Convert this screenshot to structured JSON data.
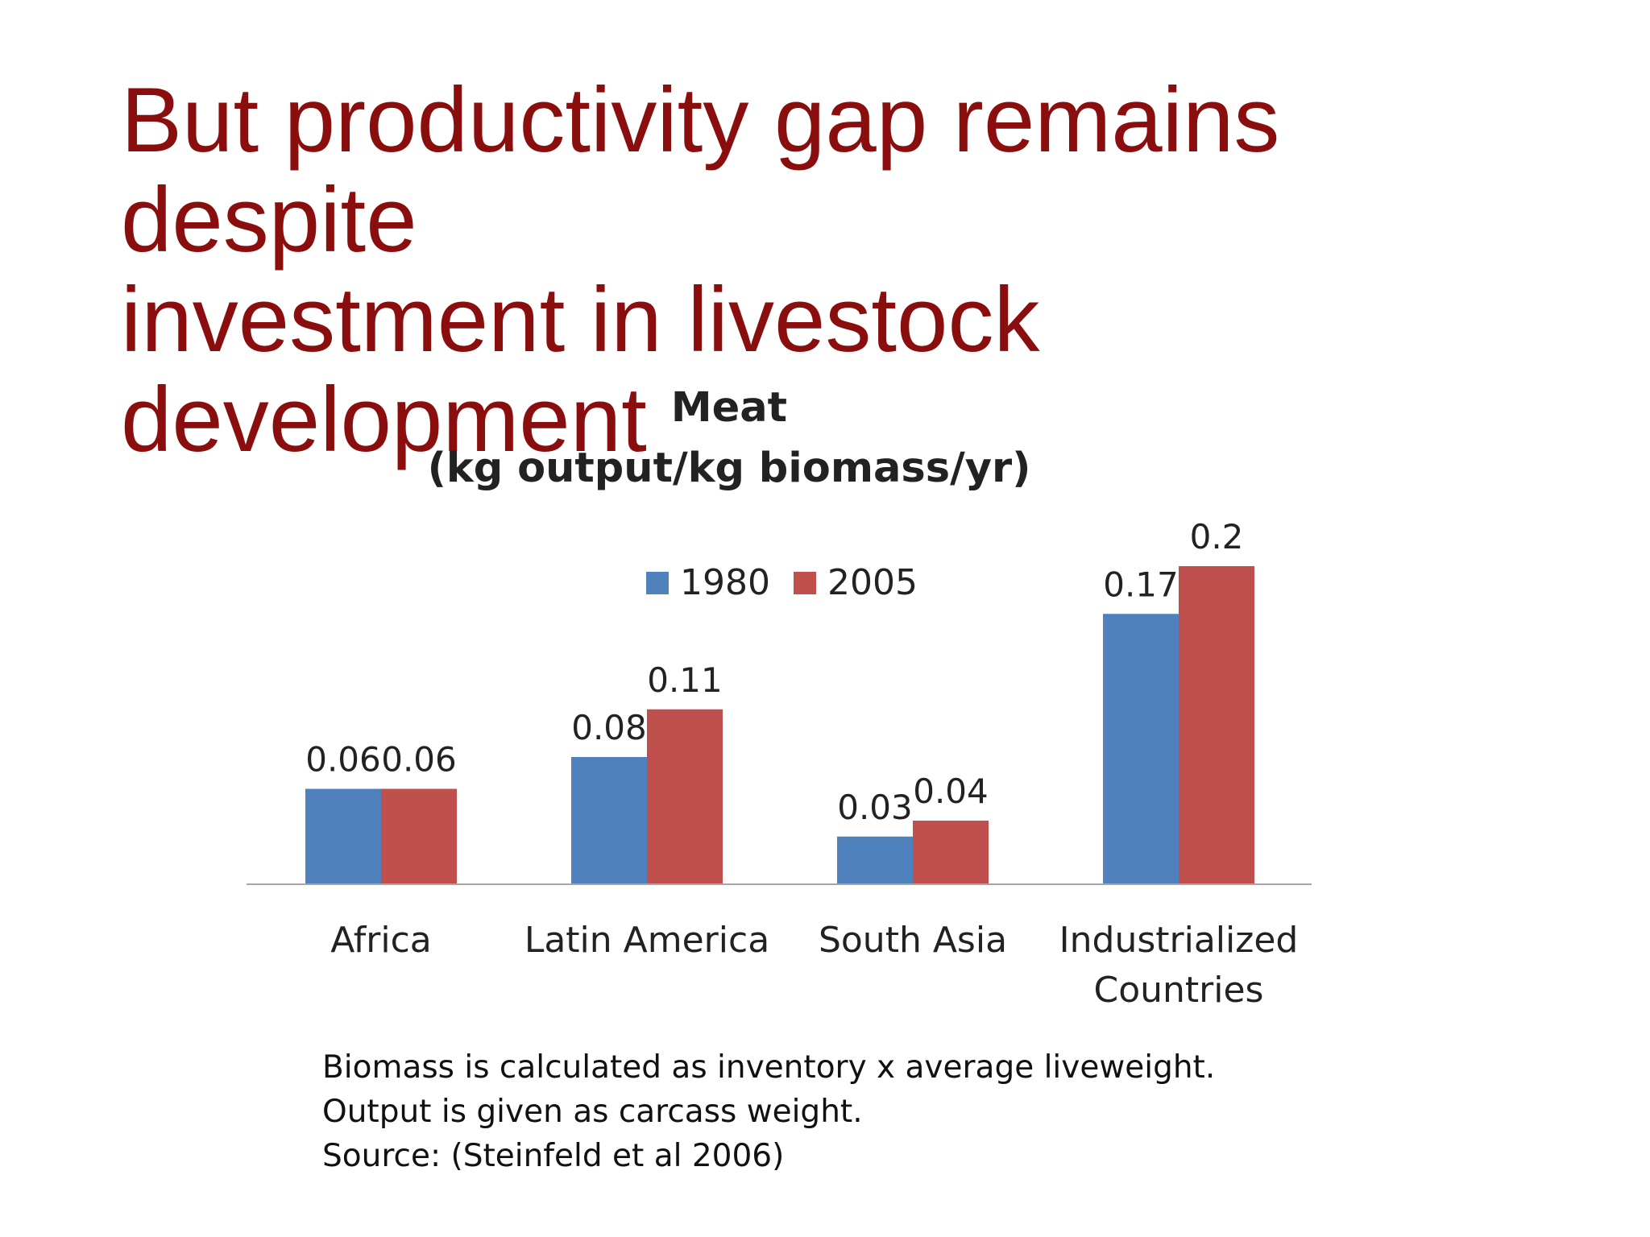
{
  "slide": {
    "title_lines": [
      "But productivity gap remains despite",
      "investment in livestock development"
    ],
    "notes": [
      "Biomass is calculated as inventory x average liveweight.",
      "Output is given as carcass weight.",
      "Source: (Steinfeld et al 2006)"
    ]
  },
  "chart_data": {
    "type": "bar",
    "title": "Meat",
    "subtitle": "(kg output/kg biomass/yr)",
    "categories": [
      "Africa",
      "Latin America",
      "South Asia",
      "Industrialized Countries"
    ],
    "category_label_lines": [
      [
        "Africa"
      ],
      [
        "Latin America"
      ],
      [
        "South Asia"
      ],
      [
        "Industrialized",
        "Countries"
      ]
    ],
    "series": [
      {
        "name": "1980",
        "values": [
          0.06,
          0.08,
          0.03,
          0.17
        ],
        "labels": [
          "0.06",
          "0.08",
          "0.03",
          "0.17"
        ],
        "color": "#4f81bd"
      },
      {
        "name": "2005",
        "values": [
          0.06,
          0.11,
          0.04,
          0.2
        ],
        "labels": [
          "0.06",
          "0.11",
          "0.04",
          "0.2"
        ],
        "color": "#c0504d"
      }
    ],
    "ylim": [
      0,
      0.2
    ],
    "grid": false,
    "legend_position": "top-center",
    "data_labels": true,
    "xlabel": "",
    "ylabel": ""
  }
}
